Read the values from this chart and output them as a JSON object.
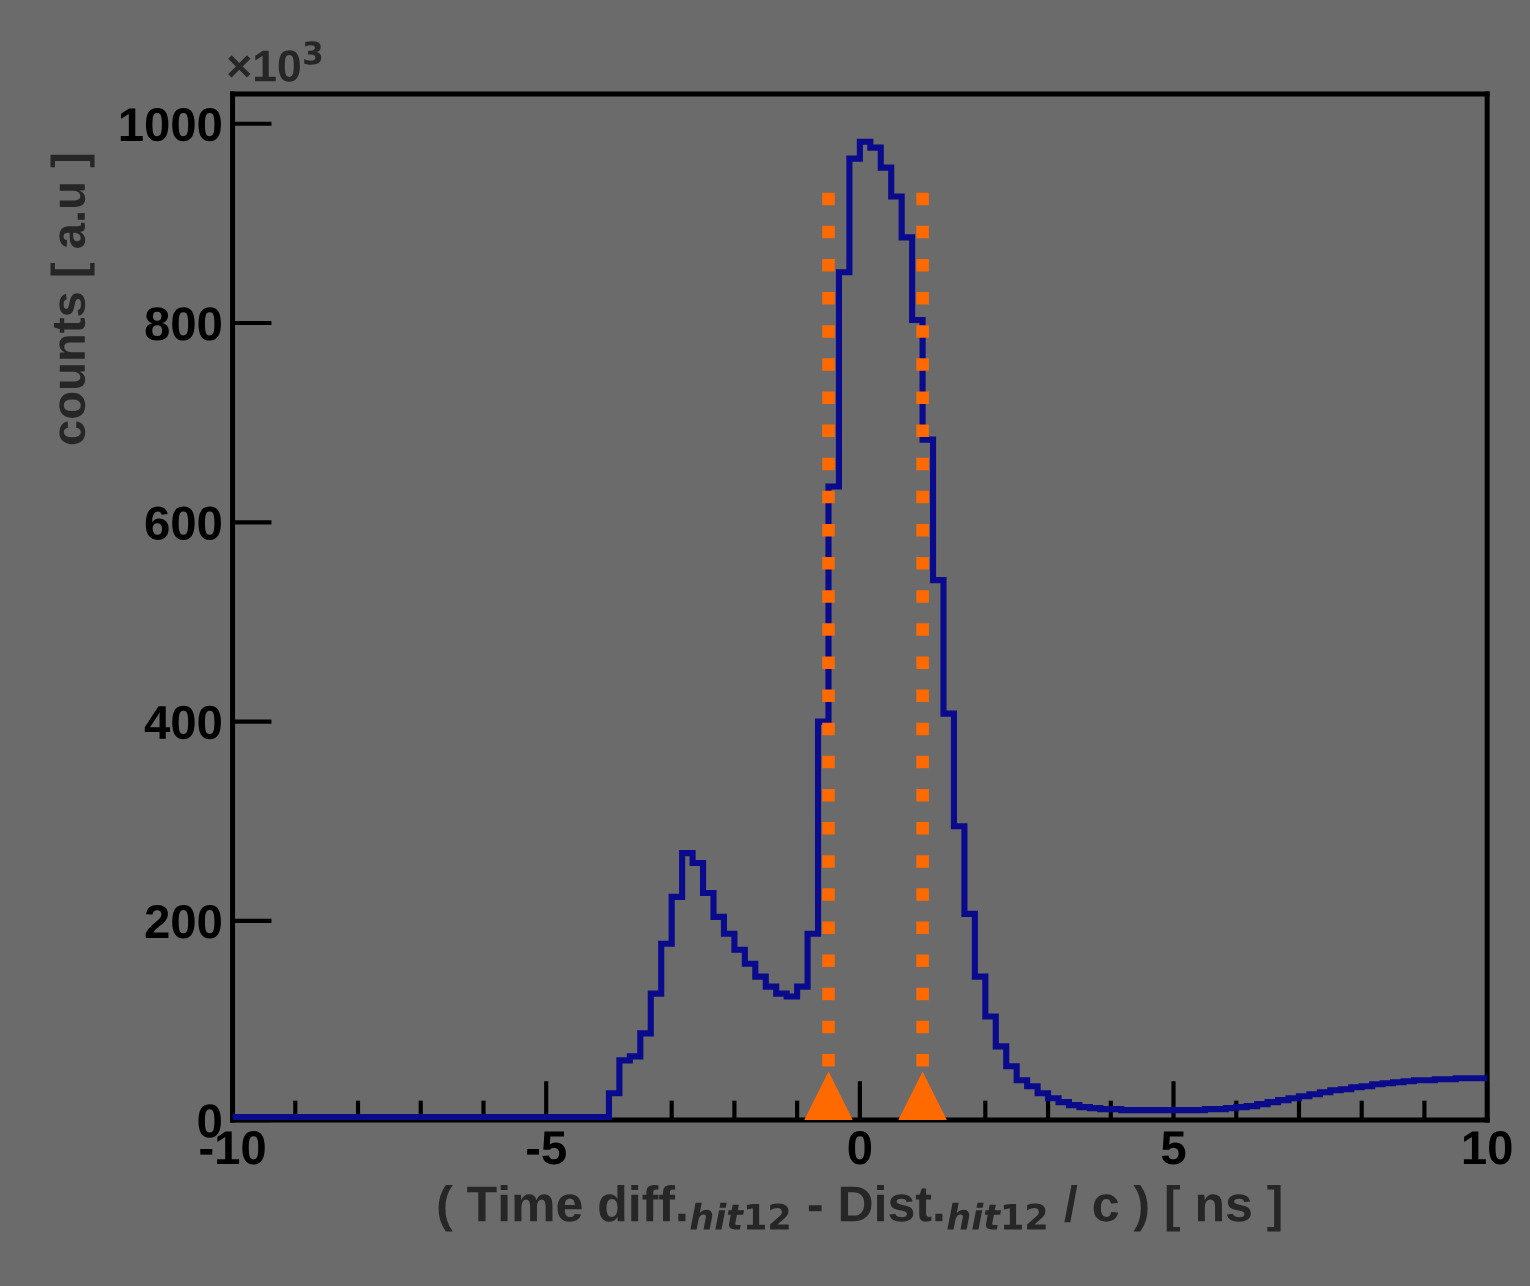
{
  "chart_data": {
    "type": "histogram",
    "xlabel": "( Time diff.$_{hit12}$ - Dist.$_{hit12}$ / c ) [ ns ]",
    "ylabel": "counts [ a.u ]",
    "annotations": [
      "×10$^{3}$"
    ],
    "bins": [
      -10,
      -9.8333,
      -9.6667,
      -9.5,
      -9.3333,
      -9.1667,
      -9,
      -8.8333,
      -8.6667,
      -8.5,
      -8.3333,
      -8.1667,
      -8,
      -7.8333,
      -7.6667,
      -7.5,
      -7.3333,
      -7.1667,
      -7,
      -6.8333,
      -6.6667,
      -6.5,
      -6.3333,
      -6.1667,
      -6,
      -5.8333,
      -5.6667,
      -5.5,
      -5.3333,
      -5.1667,
      -5,
      -4.8333,
      -4.6667,
      -4.5,
      -4.3333,
      -4.1667,
      -4,
      -3.8333,
      -3.6667,
      -3.5,
      -3.3333,
      -3.1667,
      -3,
      -2.8333,
      -2.6667,
      -2.5,
      -2.3333,
      -2.1667,
      -2,
      -1.8333,
      -1.6667,
      -1.5,
      -1.3333,
      -1.1667,
      -1,
      -0.8333,
      -0.6667,
      -0.5,
      -0.3333,
      -0.1667,
      0,
      0.1667,
      0.3333,
      0.5,
      0.6667,
      0.8333,
      1,
      1.1667,
      1.3333,
      1.5,
      1.6667,
      1.8333,
      2,
      2.1667,
      2.3333,
      2.5,
      2.6667,
      2.8333,
      3,
      3.1667,
      3.3333,
      3.5,
      3.6667,
      3.8333,
      4,
      4.1667,
      4.3333,
      4.5,
      4.6667,
      4.8333,
      5,
      5.1667,
      5.3333,
      5.5,
      5.6667,
      5.8333,
      6,
      6.1667,
      6.3333,
      6.5,
      6.6667,
      6.8333,
      7,
      7.1667,
      7.3333,
      7.5,
      7.6667,
      7.8333,
      8,
      8.1667,
      8.3333,
      8.5,
      8.6667,
      8.8333,
      9,
      9.1667,
      9.3333,
      9.5,
      9.6667,
      9.8333,
      10
    ],
    "values": [
      3,
      3,
      3,
      3,
      3,
      3,
      3,
      3,
      3,
      3,
      3,
      3,
      3,
      3,
      3,
      3,
      3,
      3,
      3,
      3,
      3,
      3,
      3,
      3,
      3,
      3,
      3,
      3,
      3,
      3,
      3,
      3,
      3,
      3,
      3,
      3,
      27,
      60,
      64,
      87,
      127,
      177,
      224,
      268,
      258,
      228,
      204,
      187,
      171,
      157,
      144,
      134,
      127,
      124,
      134,
      187,
      400,
      636,
      851,
      965,
      982,
      976,
      956,
      927,
      886,
      803,
      683,
      542,
      408,
      295,
      207,
      144,
      104,
      74,
      54,
      40,
      34,
      27,
      22,
      18,
      15,
      13,
      12,
      11,
      11,
      10,
      10,
      10,
      10,
      10,
      10,
      10,
      10,
      11,
      11,
      12,
      13,
      14,
      16,
      18,
      20,
      22,
      24,
      26,
      28,
      30,
      31,
      33,
      34,
      36,
      37,
      38,
      39,
      40,
      40,
      41,
      41,
      42,
      42,
      42
    ],
    "color": "#0a0a8c",
    "xlim": [
      -10,
      10
    ],
    "xticks": [
      -10,
      -5,
      0,
      5,
      10
    ],
    "ylim": [
      0,
      1030
    ],
    "yticks": [
      0,
      200,
      400,
      600,
      800,
      1000
    ],
    "ref_lines": [
      {
        "axis": "x",
        "value": -0.5,
        "label": null,
        "color": "#ff6a00",
        "line_style": "dotted"
      },
      {
        "axis": "x",
        "value": 1.0,
        "label": null,
        "color": "#ff6a00",
        "line_style": "dotted"
      }
    ],
    "grid": false
  }
}
